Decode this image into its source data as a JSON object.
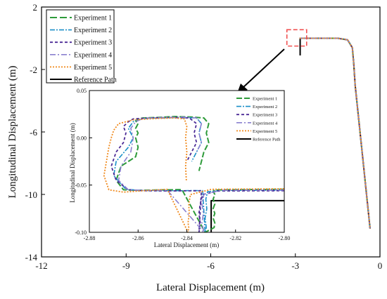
{
  "chart_data": [
    {
      "id": "main",
      "type": "line",
      "title": "",
      "xlabel": "Lateral Displacement",
      "xunit": "(m)",
      "ylabel": "Longitudinal Displacement",
      "yunit": "(m)",
      "xlim": [
        -12,
        0
      ],
      "ylim": [
        -14,
        2
      ],
      "xticks": [
        -12,
        -9,
        -6,
        -3,
        0
      ],
      "yticks": [
        2,
        -2,
        -6,
        -10,
        -14
      ],
      "legend_position": "top-left",
      "series": [
        {
          "name": "Experiment 1",
          "color": "#2e9b3a",
          "dash": "10,4",
          "width": 2,
          "x": [
            -2.85,
            -2.45,
            -2.0,
            -1.5,
            -1.15,
            -0.98,
            -0.93,
            -0.88,
            -0.62,
            -0.35
          ],
          "y": [
            0.0,
            0.0,
            0.0,
            0.0,
            -0.1,
            -0.6,
            -1.6,
            -3.0,
            -7.5,
            -12.2
          ]
        },
        {
          "name": "Experiment 2",
          "color": "#1a8fc8",
          "dash": "7,2,2,2",
          "width": 1.6,
          "x": [
            -2.85,
            -2.45,
            -2.0,
            -1.5,
            -1.15,
            -0.98,
            -0.93,
            -0.88,
            -0.62,
            -0.35
          ],
          "y": [
            0.0,
            0.0,
            0.0,
            0.0,
            -0.1,
            -0.6,
            -1.6,
            -3.0,
            -7.5,
            -12.2
          ]
        },
        {
          "name": "Experiment 3",
          "color": "#4b2a96",
          "dash": "4,3",
          "width": 1.8,
          "x": [
            -2.85,
            -2.45,
            -2.0,
            -1.5,
            -1.15,
            -0.98,
            -0.93,
            -0.88,
            -0.62,
            -0.35
          ],
          "y": [
            0.0,
            0.0,
            0.0,
            0.0,
            -0.1,
            -0.6,
            -1.6,
            -3.0,
            -7.5,
            -12.2
          ]
        },
        {
          "name": "Experiment 4",
          "color": "#8a80cf",
          "dash": "8,3,2,3",
          "width": 1.6,
          "x": [
            -2.85,
            -2.45,
            -2.0,
            -1.5,
            -1.15,
            -0.98,
            -0.93,
            -0.88,
            -0.62,
            -0.35
          ],
          "y": [
            0.0,
            0.0,
            0.0,
            0.0,
            -0.1,
            -0.6,
            -1.6,
            -3.0,
            -7.5,
            -12.2
          ]
        },
        {
          "name": "Experiment 5",
          "color": "#f08a1e",
          "dash": "2,2",
          "width": 1.8,
          "x": [
            -2.85,
            -2.45,
            -2.0,
            -1.5,
            -1.15,
            -0.98,
            -0.93,
            -0.88,
            -0.62,
            -0.35
          ],
          "y": [
            0.0,
            0.0,
            0.0,
            0.0,
            -0.1,
            -0.6,
            -1.6,
            -3.0,
            -7.5,
            -12.2
          ]
        },
        {
          "name": "Reference Path",
          "color": "#000000",
          "dash": "",
          "width": 2,
          "x": [
            -2.83,
            -2.83,
            -2.45,
            -2.0,
            -1.5,
            -1.15,
            -0.98,
            -0.93,
            -0.88,
            -0.62,
            -0.35
          ],
          "y": [
            -1.1,
            0.0,
            0.0,
            0.0,
            0.0,
            -0.1,
            -0.6,
            -1.6,
            -3.0,
            -7.5,
            -12.2
          ]
        }
      ],
      "highlight_box": {
        "x": [
          -3.3,
          -2.6
        ],
        "y": [
          -0.5,
          0.55
        ],
        "color": "#f05050"
      }
    },
    {
      "id": "inset",
      "type": "line",
      "title": "",
      "xlabel": "Lateral Displacement (m)",
      "ylabel": "Longitudinal Displacement (m)",
      "xlim": [
        -2.88,
        -2.8
      ],
      "ylim": [
        -0.1,
        0.05
      ],
      "xticks": [
        "-2.88",
        "-2.86",
        "-2.84",
        "-2.82",
        "-2.80"
      ],
      "yticks": [
        "0.05",
        "0.00",
        "-0.05",
        "-0.10"
      ],
      "legend_position": "top-right",
      "series": [
        {
          "name": "Experiment 1",
          "color": "#2e9b3a",
          "dash": "8,3",
          "width": 2,
          "x": [
            -2.8,
            -2.822,
            -2.8285,
            -2.8292,
            -2.8285,
            -2.8292,
            -2.8285,
            -2.8292,
            -2.8285,
            -2.8292,
            -2.8285,
            -2.8288,
            -2.8325,
            -2.842,
            -2.852,
            -2.86,
            -2.866,
            -2.869,
            -2.867,
            -2.861,
            -2.86,
            -2.861,
            -2.86,
            -2.861,
            -2.86,
            -2.861,
            -2.86,
            -2.858,
            -2.852,
            -2.845,
            -2.838,
            -2.833,
            -2.831,
            -2.832,
            -2.831,
            -2.833,
            -2.834,
            -2.835
          ],
          "y": [
            -0.0545,
            -0.0549,
            -0.0553,
            -0.0565,
            -0.06,
            -0.065,
            -0.07,
            -0.075,
            -0.08,
            -0.085,
            -0.09,
            -0.095,
            -0.1,
            -0.0548,
            -0.0552,
            -0.0556,
            -0.055,
            -0.045,
            -0.03,
            -0.02,
            -0.01,
            0.0,
            0.005,
            0.01,
            0.015,
            0.018,
            0.02,
            0.021,
            0.0215,
            0.0225,
            0.022,
            0.021,
            0.015,
            0.005,
            -0.005,
            -0.015,
            -0.025,
            -0.035
          ]
        },
        {
          "name": "Experiment 2",
          "color": "#1a8fc8",
          "dash": "7,2,2,2",
          "width": 1.6,
          "x": [
            -2.8,
            -2.825,
            -2.8315,
            -2.8322,
            -2.8318,
            -2.8325,
            -2.832,
            -2.8325,
            -2.8335,
            -2.848,
            -2.858,
            -2.865,
            -2.87,
            -2.869,
            -2.864,
            -2.862,
            -2.864,
            -2.862,
            -2.86,
            -2.852,
            -2.843,
            -2.836,
            -2.834,
            -2.835,
            -2.834,
            -2.836,
            -2.838
          ],
          "y": [
            -0.0555,
            -0.0557,
            -0.057,
            -0.065,
            -0.075,
            -0.085,
            -0.095,
            -0.1,
            -0.0558,
            -0.056,
            -0.0558,
            -0.0545,
            -0.04,
            -0.025,
            -0.01,
            0.0,
            0.01,
            0.017,
            0.02,
            0.021,
            0.0215,
            0.021,
            0.015,
            0.005,
            -0.005,
            -0.015,
            -0.025
          ]
        },
        {
          "name": "Experiment 3",
          "color": "#4b2a96",
          "dash": "4,3",
          "width": 1.8,
          "x": [
            -2.8,
            -2.827,
            -2.8335,
            -2.8345,
            -2.835,
            -2.8345,
            -2.835,
            -2.834,
            -2.848,
            -2.858,
            -2.864,
            -2.869,
            -2.871,
            -2.869,
            -2.866,
            -2.865,
            -2.866,
            -2.864,
            -2.862,
            -2.855,
            -2.847,
            -2.839,
            -2.836,
            -2.837,
            -2.836,
            -2.838,
            -2.84
          ],
          "y": [
            -0.056,
            -0.0562,
            -0.06,
            -0.07,
            -0.08,
            -0.09,
            -0.1,
            -0.056,
            -0.0562,
            -0.056,
            -0.055,
            -0.045,
            -0.03,
            -0.015,
            -0.005,
            0.005,
            0.012,
            0.017,
            0.02,
            0.021,
            0.0215,
            0.021,
            0.015,
            0.005,
            -0.005,
            -0.015,
            -0.025
          ]
        },
        {
          "name": "Experiment 4",
          "color": "#8a80cf",
          "dash": "8,3,2,3",
          "width": 1.6,
          "x": [
            -2.8,
            -2.826,
            -2.833,
            -2.8338,
            -2.8332,
            -2.8338,
            -2.833,
            -2.848,
            -2.857,
            -2.864,
            -2.868,
            -2.867,
            -2.863,
            -2.862,
            -2.863,
            -2.861,
            -2.858,
            -2.85,
            -2.842,
            -2.836,
            -2.834,
            -2.835,
            -2.834,
            -2.836
          ],
          "y": [
            -0.0552,
            -0.0555,
            -0.06,
            -0.07,
            -0.08,
            -0.09,
            -0.1,
            -0.0555,
            -0.0557,
            -0.055,
            -0.045,
            -0.03,
            -0.015,
            0.0,
            0.01,
            0.017,
            0.0205,
            0.0215,
            0.022,
            0.021,
            0.015,
            0.005,
            -0.005,
            -0.015
          ]
        },
        {
          "name": "Experiment 5",
          "color": "#f08a1e",
          "dash": "2,2",
          "width": 1.8,
          "x": [
            -2.8,
            -2.83,
            -2.8385,
            -2.8392,
            -2.839,
            -2.8395,
            -2.8392,
            -2.8395,
            -2.848,
            -2.858,
            -2.866,
            -2.872,
            -2.874,
            -2.873,
            -2.872,
            -2.871,
            -2.87,
            -2.868,
            -2.862,
            -2.852,
            -2.845,
            -2.841,
            -2.84,
            -2.8405,
            -2.84,
            -2.8405,
            -2.8402
          ],
          "y": [
            -0.054,
            -0.0545,
            -0.06,
            -0.07,
            -0.08,
            -0.09,
            -0.095,
            -0.1,
            -0.0545,
            -0.056,
            -0.0575,
            -0.055,
            -0.04,
            -0.025,
            -0.01,
            0.0,
            0.008,
            0.015,
            0.019,
            0.0205,
            0.021,
            0.02,
            0.012,
            0.0,
            -0.015,
            -0.03,
            -0.045
          ]
        },
        {
          "name": "Reference Path",
          "color": "#000000",
          "dash": "",
          "width": 2,
          "x": [
            -2.83,
            -2.83,
            -2.8
          ],
          "y": [
            -0.1,
            -0.0665,
            -0.0665
          ]
        }
      ]
    }
  ]
}
